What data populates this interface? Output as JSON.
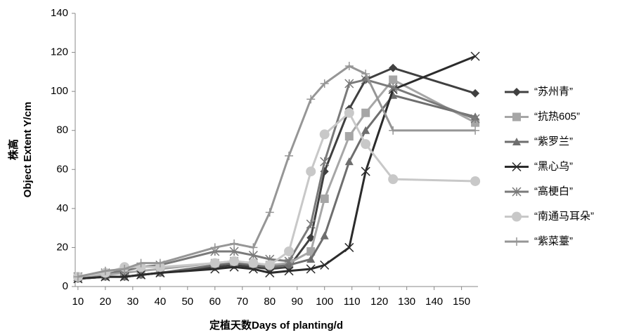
{
  "chart_data": {
    "type": "line",
    "xlabel": "定植天数Days of planting/d",
    "ylabel": [
      "株高",
      "Object Extent Y/cm"
    ],
    "x": [
      10,
      20,
      27,
      33,
      40,
      60,
      67,
      74,
      80,
      87,
      95,
      100,
      109,
      115,
      125,
      155
    ],
    "xlim": [
      9,
      156
    ],
    "xticks": [
      10,
      20,
      30,
      40,
      50,
      60,
      70,
      80,
      90,
      100,
      110,
      120,
      130,
      140,
      150
    ],
    "ylim": [
      0,
      140
    ],
    "yticks": [
      0,
      20,
      40,
      60,
      80,
      100,
      120,
      140
    ],
    "grid": false,
    "legend": "right",
    "series": [
      {
        "name": "“苏州青”",
        "color": "#404040",
        "marker": "diamond",
        "values": [
          4,
          5,
          5,
          6,
          7,
          10,
          11,
          10,
          9,
          10,
          25,
          59,
          91,
          106,
          112,
          99
        ]
      },
      {
        "name": "“抗热605”",
        "color": "#a6a6a6",
        "marker": "square",
        "values": [
          5,
          6,
          7,
          8,
          9,
          12,
          13,
          12,
          11,
          12,
          18,
          45,
          77,
          89,
          106,
          84
        ]
      },
      {
        "name": "“紫罗兰”",
        "color": "#6e6e6e",
        "marker": "triangle",
        "values": [
          4,
          5,
          5,
          6,
          7,
          11,
          12,
          11,
          10,
          11,
          14,
          26,
          64,
          80,
          98,
          87
        ]
      },
      {
        "name": "“黑心乌”",
        "color": "#2b2b2b",
        "marker": "x",
        "values": [
          4,
          5,
          5,
          6,
          7,
          9,
          10,
          9,
          7,
          8,
          9,
          11,
          20,
          59,
          101,
          118
        ]
      },
      {
        "name": "“高梗白”",
        "color": "#7a7a7a",
        "marker": "star",
        "values": [
          5,
          7,
          8,
          10,
          11,
          18,
          18,
          16,
          14,
          13,
          32,
          64,
          104,
          106,
          102,
          86
        ]
      },
      {
        "name": "“南通马耳朵”",
        "color": "#c8c8c8",
        "marker": "circle",
        "values": [
          5,
          7,
          10,
          10,
          10,
          12,
          13,
          12,
          11,
          18,
          59,
          78,
          89,
          73,
          55,
          54
        ]
      },
      {
        "name": "“紫菜薹”",
        "color": "#969696",
        "marker": "plus",
        "values": [
          5,
          8,
          9,
          12,
          12,
          20,
          22,
          20,
          38,
          67,
          96,
          104,
          113,
          109,
          80,
          80
        ]
      }
    ]
  }
}
